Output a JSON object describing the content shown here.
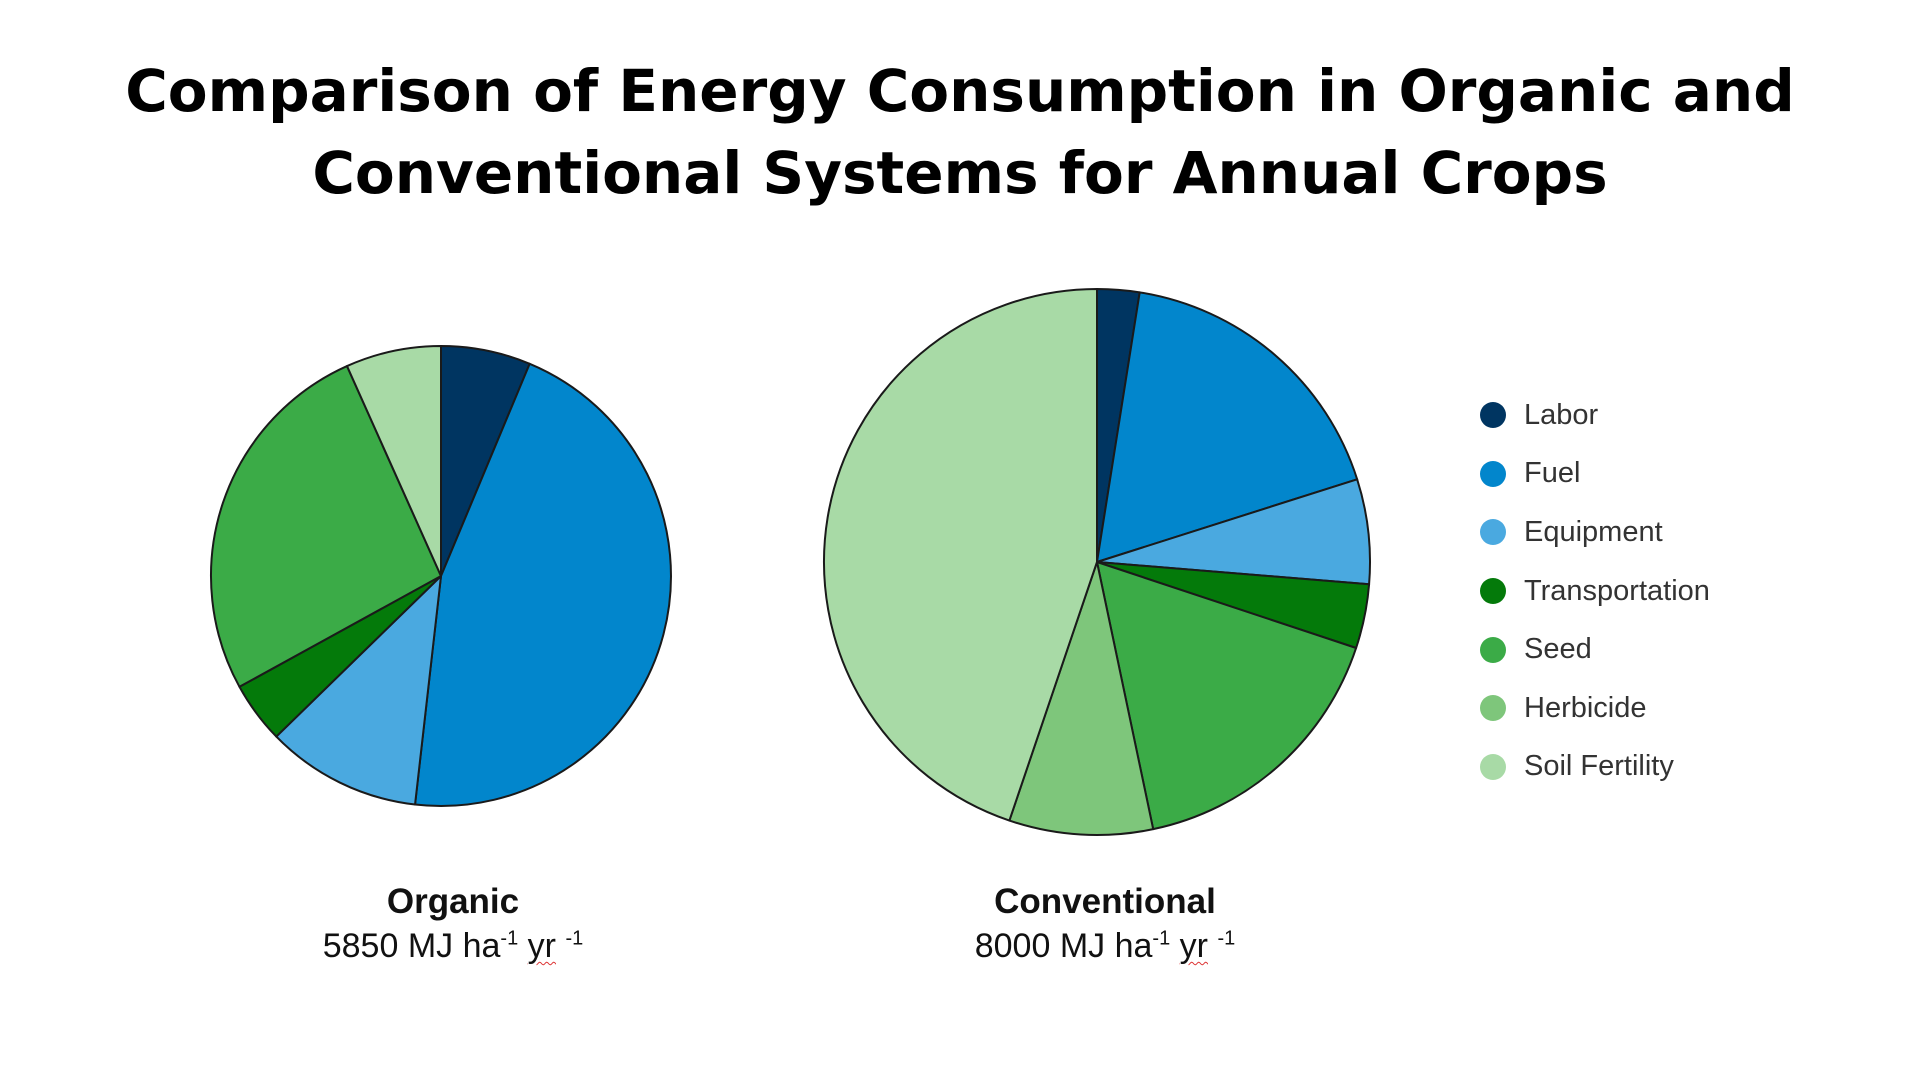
{
  "title": {
    "line1": "Comparison of Energy Consumption in Organic and",
    "line2": "Conventional Systems for Annual Crops"
  },
  "legend": [
    {
      "label": "Labor",
      "color": "#003561"
    },
    {
      "label": "Fuel",
      "color": "#0286cc"
    },
    {
      "label": "Equipment",
      "color": "#4aa9e0"
    },
    {
      "label": "Transportation",
      "color": "#047a0a"
    },
    {
      "label": "Seed",
      "color": "#3bab47"
    },
    {
      "label": "Herbicide",
      "color": "#7ec67b"
    },
    {
      "label": "Soil Fertility",
      "color": "#a8daa6"
    }
  ],
  "pies": [
    {
      "name": "Organic",
      "total_value": "5850",
      "total_unit_main": "MJ ha",
      "total_exp1": "-1",
      "total_unit_yr": "yr",
      "total_exp2": "-1"
    },
    {
      "name": "Conventional",
      "total_value": "8000",
      "total_unit_main": "MJ ha",
      "total_exp1": "-1",
      "total_unit_yr": "yr",
      "total_exp2": "-1"
    }
  ],
  "chart_data": [
    {
      "type": "pie",
      "name": "Organic",
      "total": 5850,
      "unit": "MJ ha-1 yr-1",
      "categories": [
        "Labor",
        "Fuel",
        "Equipment",
        "Transportation",
        "Seed",
        "Herbicide",
        "Soil Fertility"
      ],
      "values": [
        6.3,
        45.5,
        10.9,
        4.3,
        26.3,
        0,
        6.7
      ]
    },
    {
      "type": "pie",
      "name": "Conventional",
      "total": 8000,
      "unit": "MJ ha-1 yr-1",
      "categories": [
        "Labor",
        "Fuel",
        "Equipment",
        "Transportation",
        "Seed",
        "Herbicide",
        "Soil Fertility"
      ],
      "values": [
        2.5,
        17.6,
        6.2,
        3.8,
        16.6,
        8.5,
        44.8
      ]
    }
  ]
}
